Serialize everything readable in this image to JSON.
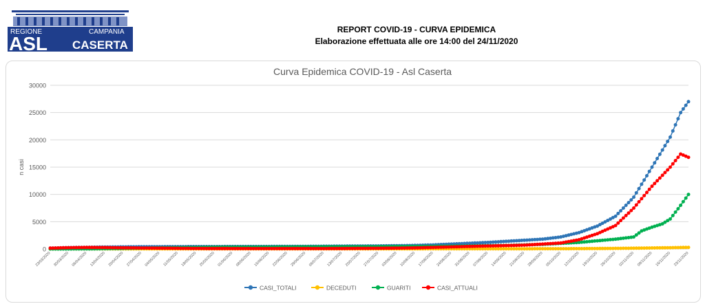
{
  "logo": {
    "line1": "REGIONE",
    "line2": "CAMPANIA",
    "abbr": "ASL",
    "name": "CASERTA"
  },
  "header": {
    "title": "REPORT COVID-19 - CURVA EPIDEMICA",
    "subtitle": "Elaborazione effettuata alle ore 14:00 del 24/11/2020"
  },
  "chart_data": {
    "type": "line",
    "title": "Curva Epidemica COVID-19 - Asl Caserta",
    "xlabel": "",
    "ylabel": "n casi",
    "ylim": [
      0,
      30000
    ],
    "yticks": [
      0,
      5000,
      10000,
      15000,
      20000,
      25000,
      30000
    ],
    "grid": true,
    "legend_position": "bottom",
    "start_date": "2020-03-23",
    "end_date": "2020-11-23",
    "x_tick_labels": [
      "23/03/2020",
      "30/03/2020",
      "06/04/2020",
      "13/04/2020",
      "20/04/2020",
      "27/04/2020",
      "04/05/2020",
      "11/05/2020",
      "18/05/2020",
      "25/05/2020",
      "01/06/2020",
      "08/06/2020",
      "15/06/2020",
      "22/06/2020",
      "29/06/2020",
      "06/07/2020",
      "13/07/2020",
      "20/07/2020",
      "27/07/2020",
      "03/08/2020",
      "10/08/2020",
      "17/08/2020",
      "24/08/2020",
      "31/08/2020",
      "07/09/2020",
      "14/09/2020",
      "21/09/2020",
      "28/09/2020",
      "05/10/2020",
      "12/10/2020",
      "19/10/2020",
      "26/10/2020",
      "02/11/2020",
      "09/11/2020",
      "16/11/2020",
      "23/11/2020"
    ],
    "series": [
      {
        "name": "CASI_TOTALI",
        "color": "#2E75B6",
        "points": [
          [
            "23/03/2020",
            150
          ],
          [
            "30/03/2020",
            250
          ],
          [
            "06/04/2020",
            300
          ],
          [
            "13/04/2020",
            350
          ],
          [
            "20/04/2020",
            380
          ],
          [
            "27/04/2020",
            400
          ],
          [
            "04/05/2020",
            420
          ],
          [
            "11/05/2020",
            430
          ],
          [
            "18/05/2020",
            440
          ],
          [
            "25/05/2020",
            445
          ],
          [
            "01/06/2020",
            450
          ],
          [
            "08/06/2020",
            455
          ],
          [
            "15/06/2020",
            460
          ],
          [
            "22/06/2020",
            470
          ],
          [
            "29/06/2020",
            480
          ],
          [
            "06/07/2020",
            500
          ],
          [
            "13/07/2020",
            520
          ],
          [
            "20/07/2020",
            540
          ],
          [
            "27/07/2020",
            560
          ],
          [
            "03/08/2020",
            600
          ],
          [
            "10/08/2020",
            650
          ],
          [
            "17/08/2020",
            750
          ],
          [
            "24/08/2020",
            900
          ],
          [
            "31/08/2020",
            1050
          ],
          [
            "07/09/2020",
            1200
          ],
          [
            "14/09/2020",
            1400
          ],
          [
            "21/09/2020",
            1600
          ],
          [
            "28/09/2020",
            1800
          ],
          [
            "05/10/2020",
            2200
          ],
          [
            "12/10/2020",
            3000
          ],
          [
            "19/10/2020",
            4200
          ],
          [
            "26/10/2020",
            6000
          ],
          [
            "02/11/2020",
            9500
          ],
          [
            "09/11/2020",
            15000
          ],
          [
            "16/11/2020",
            20500
          ],
          [
            "20/11/2020",
            25000
          ],
          [
            "23/11/2020",
            27000
          ]
        ]
      },
      {
        "name": "DECEDUTI",
        "color": "#FFC000",
        "points": [
          [
            "23/03/2020",
            5
          ],
          [
            "27/04/2020",
            20
          ],
          [
            "01/06/2020",
            25
          ],
          [
            "03/08/2020",
            30
          ],
          [
            "07/09/2020",
            35
          ],
          [
            "05/10/2020",
            50
          ],
          [
            "19/10/2020",
            80
          ],
          [
            "02/11/2020",
            140
          ],
          [
            "16/11/2020",
            230
          ],
          [
            "23/11/2020",
            290
          ]
        ]
      },
      {
        "name": "GUARITI",
        "color": "#00B050",
        "points": [
          [
            "23/03/2020",
            0
          ],
          [
            "06/04/2020",
            10
          ],
          [
            "20/04/2020",
            100
          ],
          [
            "04/05/2020",
            220
          ],
          [
            "25/05/2020",
            330
          ],
          [
            "22/06/2020",
            380
          ],
          [
            "20/07/2020",
            420
          ],
          [
            "17/08/2020",
            480
          ],
          [
            "14/09/2020",
            650
          ],
          [
            "28/09/2020",
            850
          ],
          [
            "12/10/2020",
            1200
          ],
          [
            "19/10/2020",
            1500
          ],
          [
            "26/10/2020",
            1800
          ],
          [
            "02/11/2020",
            2200
          ],
          [
            "05/11/2020",
            3300
          ],
          [
            "09/11/2020",
            4000
          ],
          [
            "13/11/2020",
            4600
          ],
          [
            "16/11/2020",
            5500
          ],
          [
            "20/11/2020",
            8000
          ],
          [
            "23/11/2020",
            10000
          ]
        ]
      },
      {
        "name": "CASI_ATTUALI",
        "color": "#FF0000",
        "points": [
          [
            "23/03/2020",
            150
          ],
          [
            "30/03/2020",
            240
          ],
          [
            "06/04/2020",
            280
          ],
          [
            "13/04/2020",
            260
          ],
          [
            "20/04/2020",
            220
          ],
          [
            "27/04/2020",
            180
          ],
          [
            "04/05/2020",
            150
          ],
          [
            "11/05/2020",
            120
          ],
          [
            "18/05/2020",
            100
          ],
          [
            "25/05/2020",
            90
          ],
          [
            "01/06/2020",
            80
          ],
          [
            "15/06/2020",
            70
          ],
          [
            "29/06/2020",
            70
          ],
          [
            "13/07/2020",
            90
          ],
          [
            "27/07/2020",
            130
          ],
          [
            "10/08/2020",
            200
          ],
          [
            "24/08/2020",
            380
          ],
          [
            "07/09/2020",
            550
          ],
          [
            "21/09/2020",
            700
          ],
          [
            "05/10/2020",
            1100
          ],
          [
            "12/10/2020",
            1700
          ],
          [
            "19/10/2020",
            2800
          ],
          [
            "26/10/2020",
            4300
          ],
          [
            "02/11/2020",
            7500
          ],
          [
            "09/11/2020",
            11500
          ],
          [
            "16/11/2020",
            15000
          ],
          [
            "20/11/2020",
            17400
          ],
          [
            "23/11/2020",
            16800
          ]
        ]
      }
    ]
  }
}
